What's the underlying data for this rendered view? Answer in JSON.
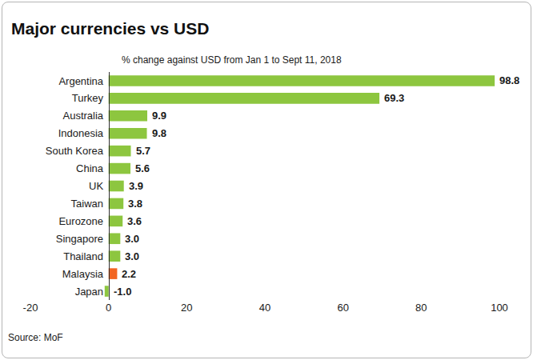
{
  "chart_data": {
    "type": "bar",
    "orientation": "horizontal",
    "title": "Major currencies vs USD",
    "subtitle": "% change against USD from Jan 1 to Sept 11, 2018",
    "source": "Source: MoF",
    "categories": [
      "Argentina",
      "Turkey",
      "Australia",
      "Indonesia",
      "South Korea",
      "China",
      "UK",
      "Taiwan",
      "Eurozone",
      "Singapore",
      "Thailand",
      "Malaysia",
      "Japan"
    ],
    "values": [
      98.8,
      69.3,
      9.9,
      9.8,
      5.7,
      5.6,
      3.9,
      3.8,
      3.6,
      3.0,
      3.0,
      2.2,
      -1.0
    ],
    "value_labels": [
      "98.8",
      "69.3",
      "9.9",
      "9.8",
      "5.7",
      "5.6",
      "3.9",
      "3.8",
      "3.6",
      "3.0",
      "3.0",
      "2.2",
      "-1.0"
    ],
    "colors": [
      "#8dc63f",
      "#8dc63f",
      "#8dc63f",
      "#8dc63f",
      "#8dc63f",
      "#8dc63f",
      "#8dc63f",
      "#8dc63f",
      "#8dc63f",
      "#8dc63f",
      "#8dc63f",
      "#f26522",
      "#8dc63f"
    ],
    "xlim": [
      -20,
      100
    ],
    "xticks": [
      -20,
      0,
      20,
      40,
      60,
      80,
      100
    ],
    "grid": false,
    "data_labels": true
  }
}
